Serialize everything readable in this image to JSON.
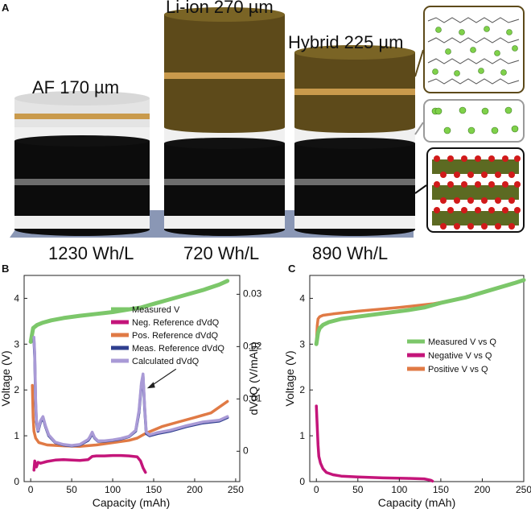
{
  "panel_a": {
    "letter": "A",
    "stacks": [
      {
        "label": "AF 170 µm",
        "energy": "1230 Wh/L"
      },
      {
        "label": "Li-ion 270 µm",
        "energy": "720 Wh/L"
      },
      {
        "label": "Hybrid 225 µm",
        "energy": "890 Wh/L"
      }
    ],
    "colors": {
      "base": "#8a97b5",
      "black": "#0c0c0c",
      "white": "#f0f0f0",
      "gray": "#6d6d6d",
      "olive": "#5d4a1a",
      "gold": "#c99a4c",
      "lightgray": "#d8d8d8",
      "li": "#7fd14a",
      "o": "#d11a1a",
      "mo": "#5c6a22"
    }
  },
  "chart_data": [
    {
      "panel": "B",
      "type": "line",
      "xlabel": "Capacity (mAh)",
      "ylabel": "Voltage (V)",
      "y2label": "dVdQ (V/mAh)",
      "xlim": [
        -8,
        255
      ],
      "ylim": [
        0,
        4.5
      ],
      "y2lim": [
        -0.0058,
        0.0336
      ],
      "xticks": [
        0,
        50,
        100,
        150,
        200,
        250
      ],
      "yticks": [
        0,
        1,
        2,
        3,
        4
      ],
      "y2ticks": [
        0,
        0.01,
        0.02,
        0.03
      ],
      "y2ticklabels": [
        "0",
        "0.01",
        "0.02",
        "0.03"
      ],
      "series": [
        {
          "name": "Measured V",
          "axis": "left",
          "color": "#7cc76a",
          "x": [
            0,
            3,
            8,
            15,
            25,
            40,
            60,
            80,
            100,
            120,
            135,
            150,
            170,
            190,
            210,
            230,
            240
          ],
          "y": [
            3.05,
            3.35,
            3.42,
            3.47,
            3.52,
            3.57,
            3.62,
            3.66,
            3.7,
            3.76,
            3.8,
            3.88,
            3.98,
            4.08,
            4.18,
            4.3,
            4.38
          ]
        },
        {
          "name": "Neg. Reference dVdQ",
          "axis": "left",
          "color": "#c4157a",
          "x": [
            4,
            5,
            7,
            9,
            12,
            20,
            30,
            40,
            50,
            60,
            70,
            75,
            80,
            90,
            100,
            110,
            120,
            130,
            134,
            137,
            140
          ],
          "y": [
            0.25,
            0.45,
            0.32,
            0.42,
            0.4,
            0.44,
            0.47,
            0.48,
            0.47,
            0.46,
            0.48,
            0.55,
            0.56,
            0.56,
            0.57,
            0.57,
            0.56,
            0.54,
            0.45,
            0.3,
            0.2
          ]
        },
        {
          "name": "Pos. Reference dVdQ",
          "axis": "left",
          "color": "#e07a45",
          "x": [
            2,
            3,
            4,
            6,
            10,
            20,
            40,
            60,
            80,
            100,
            120,
            130,
            135,
            140,
            160,
            180,
            200,
            220,
            240
          ],
          "y": [
            2.1,
            1.4,
            1.1,
            0.95,
            0.85,
            0.8,
            0.78,
            0.77,
            0.8,
            0.85,
            0.9,
            0.95,
            1.0,
            1.05,
            1.2,
            1.3,
            1.4,
            1.5,
            1.75
          ]
        },
        {
          "name": "Meas. Reference dVdQ",
          "axis": "left",
          "color": "#2f3f8f",
          "x": [
            4,
            5,
            6,
            7,
            9,
            12,
            15,
            18,
            22,
            30,
            40,
            50,
            60,
            70,
            72,
            75,
            78,
            82,
            90,
            100,
            110,
            120,
            128,
            132,
            135,
            137,
            139,
            141,
            145,
            155,
            170,
            190,
            210,
            230,
            240
          ],
          "y": [
            3.1,
            2.7,
            1.7,
            1.3,
            1.1,
            1.3,
            1.4,
            1.2,
            1.0,
            0.85,
            0.8,
            0.78,
            0.8,
            0.9,
            0.95,
            1.05,
            0.95,
            0.88,
            0.88,
            0.9,
            0.93,
            0.98,
            1.1,
            1.5,
            2.1,
            2.3,
            1.6,
            1.05,
            1.0,
            1.05,
            1.1,
            1.2,
            1.28,
            1.32,
            1.4
          ]
        },
        {
          "name": "Calculated dVdQ",
          "axis": "left",
          "color": "#a99ad6",
          "x": [
            4,
            5,
            6,
            7,
            9,
            12,
            15,
            18,
            22,
            30,
            40,
            50,
            60,
            70,
            72,
            75,
            78,
            82,
            90,
            100,
            110,
            120,
            128,
            132,
            135,
            137,
            139,
            141,
            145,
            155,
            170,
            190,
            210,
            230,
            240
          ],
          "y": [
            3.15,
            2.8,
            1.8,
            1.35,
            1.12,
            1.33,
            1.42,
            1.22,
            1.02,
            0.86,
            0.81,
            0.79,
            0.81,
            0.92,
            0.97,
            1.08,
            0.96,
            0.89,
            0.89,
            0.91,
            0.94,
            0.99,
            1.12,
            1.55,
            2.15,
            2.35,
            1.65,
            1.08,
            1.02,
            1.07,
            1.12,
            1.22,
            1.3,
            1.34,
            1.42
          ]
        }
      ],
      "annotation": {
        "type": "arrow",
        "target_x": 138,
        "target_y": 2.0
      }
    },
    {
      "panel": "C",
      "type": "line",
      "xlabel": "Capacity (mAh)",
      "ylabel": "Voltage (V)",
      "xlim": [
        -8,
        250
      ],
      "ylim": [
        0,
        4.5
      ],
      "xticks": [
        0,
        50,
        100,
        150,
        200,
        250
      ],
      "yticks": [
        0,
        1,
        2,
        3,
        4
      ],
      "series": [
        {
          "name": "Positive V vs Q",
          "color": "#e07a45",
          "x": [
            0,
            1,
            2,
            4,
            8,
            20,
            50,
            100,
            140,
            170,
            200,
            230,
            250
          ],
          "y": [
            3.0,
            3.4,
            3.55,
            3.6,
            3.63,
            3.66,
            3.72,
            3.8,
            3.88,
            3.98,
            4.12,
            4.28,
            4.4
          ]
        },
        {
          "name": "Measured V vs Q",
          "color": "#7cc76a",
          "x": [
            0,
            2,
            4,
            8,
            15,
            30,
            50,
            80,
            110,
            130,
            150,
            180,
            210,
            240,
            250
          ],
          "y": [
            3.0,
            3.25,
            3.35,
            3.42,
            3.48,
            3.55,
            3.6,
            3.67,
            3.74,
            3.8,
            3.9,
            4.02,
            4.18,
            4.34,
            4.4
          ]
        },
        {
          "name": "Negative V vs Q",
          "color": "#c4157a",
          "x": [
            0,
            1,
            2,
            3,
            5,
            8,
            12,
            20,
            30,
            50,
            80,
            110,
            130,
            138,
            140
          ],
          "y": [
            1.65,
            1.2,
            0.8,
            0.55,
            0.4,
            0.28,
            0.2,
            0.15,
            0.12,
            0.1,
            0.08,
            0.07,
            0.06,
            0.03,
            0.01
          ]
        }
      ],
      "legend_order": [
        "Measured V vs Q",
        "Negative V vs Q",
        "Positive V vs Q"
      ]
    }
  ]
}
